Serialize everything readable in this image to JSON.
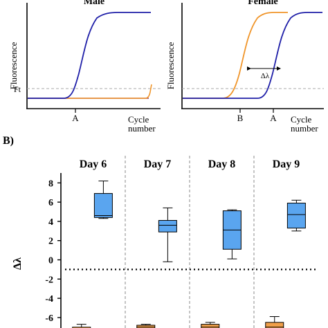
{
  "panel_a": {
    "male": {
      "title": "Male",
      "ylabel": "Fluorescence",
      "threshold_label": "Ft",
      "tick_a": "A",
      "xlabel_line1": "Cycle",
      "xlabel_line2": "number"
    },
    "female": {
      "title": "Female",
      "ylabel": "Fluorescence",
      "tick_b": "B",
      "tick_a": "A",
      "delta_label": "Δλ",
      "xlabel_line1": "Cycle",
      "xlabel_line2": "number"
    },
    "colors": {
      "blue": "#1f1fa8",
      "orange": "#f0952a",
      "threshold": "#a9a9a9",
      "baseline_male": "#9a3a5a"
    }
  },
  "panel_b_label": "B)",
  "chart_data": {
    "type": "box",
    "ylabel": "Δλ",
    "ylim": [
      -7.5,
      9.5
    ],
    "yticks": [
      8,
      6,
      4,
      2,
      0,
      -2,
      -4,
      -6
    ],
    "ytick_labels": [
      "8",
      "6",
      "4",
      "2",
      "0",
      "-2",
      "-4",
      "-6"
    ],
    "reference_line_y": -1,
    "categories": [
      "Day 6",
      "Day 7",
      "Day 8",
      "Day 9"
    ],
    "series": [
      {
        "color": "#5aa5ef",
        "boxes": [
          {
            "min": 4.3,
            "q1": 4.4,
            "median": 4.6,
            "q3": 6.9,
            "max": 8.2
          },
          {
            "min": -0.2,
            "q1": 2.9,
            "median": 3.6,
            "q3": 4.1,
            "max": 5.4
          },
          {
            "min": 0.1,
            "q1": 1.1,
            "median": 3.1,
            "q3": 5.1,
            "max": 5.2
          },
          {
            "min": 3.0,
            "q1": 3.3,
            "median": 4.7,
            "q3": 5.9,
            "max": 6.2
          }
        ]
      },
      {
        "color": "#f0a04a",
        "boxes": [
          {
            "min": -7.8,
            "q1": -7.4,
            "median": -7.2,
            "q3": -7.0,
            "max": -6.7
          },
          {
            "min": -7.8,
            "q1": -7.4,
            "median": -7.0,
            "q3": -6.8,
            "max": -6.7
          },
          {
            "min": -7.8,
            "q1": -7.2,
            "median": -7.0,
            "q3": -6.7,
            "max": -6.5
          },
          {
            "min": -7.8,
            "q1": -7.2,
            "median": -7.0,
            "q3": -6.5,
            "max": -5.9
          }
        ]
      }
    ]
  }
}
